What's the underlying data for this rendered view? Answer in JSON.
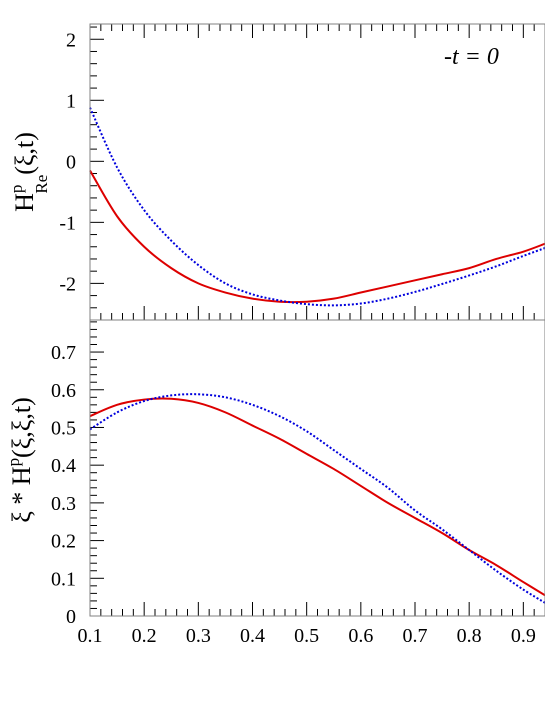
{
  "chart_data": [
    {
      "type": "line",
      "panel": "top",
      "ylabel_main": "H",
      "ylabel_sup": "p",
      "ylabel_sub": "Re",
      "ylabel_args": "(ξ,t)",
      "annotation": "-t = 0",
      "xlim": [
        0.1,
        0.94
      ],
      "ylim": [
        -2.6,
        2.25
      ],
      "yticks": [
        -2,
        -1,
        0,
        1,
        2
      ],
      "ytick_labels": [
        "-2",
        "-1",
        "0",
        "1",
        "2"
      ],
      "series": [
        {
          "color": "#dd0000",
          "style": "solid",
          "x": [
            0.1,
            0.15,
            0.2,
            0.25,
            0.3,
            0.35,
            0.4,
            0.45,
            0.5,
            0.55,
            0.6,
            0.65,
            0.7,
            0.75,
            0.8,
            0.85,
            0.9,
            0.94
          ],
          "y": [
            -0.15,
            -0.9,
            -1.4,
            -1.75,
            -2.0,
            -2.15,
            -2.25,
            -2.3,
            -2.3,
            -2.25,
            -2.15,
            -2.05,
            -1.95,
            -1.85,
            -1.75,
            -1.6,
            -1.48,
            -1.35
          ]
        },
        {
          "color": "#0000dd",
          "style": "dotted",
          "x": [
            0.1,
            0.15,
            0.2,
            0.25,
            0.3,
            0.35,
            0.4,
            0.45,
            0.5,
            0.55,
            0.6,
            0.65,
            0.7,
            0.75,
            0.8,
            0.85,
            0.9,
            0.94
          ],
          "y": [
            0.88,
            -0.1,
            -0.8,
            -1.3,
            -1.7,
            -2.0,
            -2.18,
            -2.28,
            -2.34,
            -2.36,
            -2.33,
            -2.25,
            -2.14,
            -2.01,
            -1.87,
            -1.72,
            -1.55,
            -1.42
          ]
        }
      ]
    },
    {
      "type": "line",
      "panel": "bottom",
      "ylabel_main": "ξ * H",
      "ylabel_sup": "p",
      "ylabel_args": "(ξ,ξ,t)",
      "xlim": [
        0.1,
        0.94
      ],
      "ylim": [
        0,
        0.785
      ],
      "xticks": [
        0.1,
        0.2,
        0.3,
        0.4,
        0.5,
        0.6,
        0.7,
        0.8,
        0.9
      ],
      "xtick_labels": [
        "0.1",
        "0.2",
        "0.3",
        "0.4",
        "0.5",
        "0.6",
        "0.7",
        "0.8",
        "0.9"
      ],
      "yticks": [
        0,
        0.1,
        0.2,
        0.3,
        0.4,
        0.5,
        0.6,
        0.7
      ],
      "ytick_labels": [
        "0",
        "0.1",
        "0.2",
        "0.3",
        "0.4",
        "0.5",
        "0.6",
        "0.7"
      ],
      "series": [
        {
          "color": "#dd0000",
          "style": "solid",
          "x": [
            0.1,
            0.15,
            0.2,
            0.25,
            0.3,
            0.35,
            0.4,
            0.45,
            0.5,
            0.55,
            0.6,
            0.65,
            0.7,
            0.75,
            0.8,
            0.85,
            0.9,
            0.94
          ],
          "y": [
            0.53,
            0.56,
            0.574,
            0.576,
            0.565,
            0.54,
            0.505,
            0.47,
            0.43,
            0.39,
            0.345,
            0.3,
            0.26,
            0.22,
            0.175,
            0.135,
            0.09,
            0.055
          ]
        },
        {
          "color": "#0000dd",
          "style": "dotted",
          "x": [
            0.1,
            0.15,
            0.2,
            0.25,
            0.3,
            0.35,
            0.4,
            0.45,
            0.5,
            0.55,
            0.6,
            0.65,
            0.7,
            0.75,
            0.8,
            0.85,
            0.9,
            0.94
          ],
          "y": [
            0.495,
            0.54,
            0.57,
            0.585,
            0.588,
            0.58,
            0.56,
            0.53,
            0.49,
            0.44,
            0.39,
            0.34,
            0.28,
            0.23,
            0.175,
            0.12,
            0.07,
            0.035
          ]
        }
      ]
    }
  ]
}
